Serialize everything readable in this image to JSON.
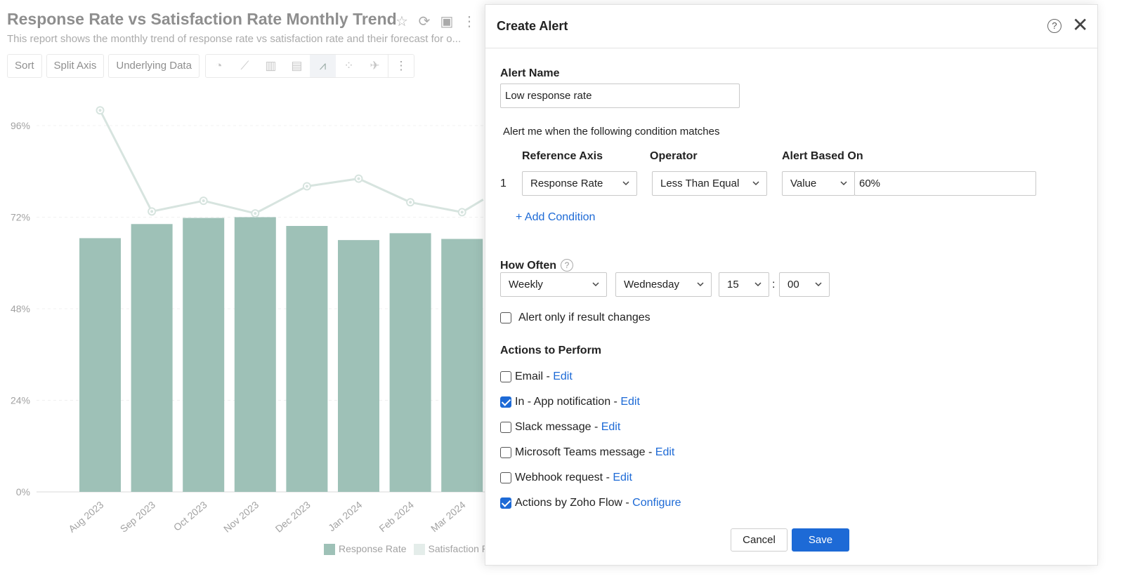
{
  "report": {
    "title": "Response Rate vs Satisfaction Rate Monthly Trend",
    "description": "This report shows the monthly trend of response rate vs satisfaction rate and their forecast for o...",
    "toolbar": {
      "sort": "Sort",
      "split_axis": "Split Axis",
      "underlying_data": "Underlying Data"
    },
    "icons": [
      "star-icon",
      "refresh-icon",
      "save-icon",
      "more-icon"
    ],
    "chart_types": [
      "pie-chart-icon",
      "line-chart-icon",
      "bar-chart-icon",
      "stacked-bar-icon",
      "combo-chart-icon",
      "scatter-icon",
      "map-icon"
    ]
  },
  "chart_data": {
    "type": "bar",
    "categories": [
      "Aug 2023",
      "Sep 2023",
      "Oct 2023",
      "Nov 2023",
      "Dec 2023",
      "Jan 2024",
      "Feb 2024",
      "Mar 2024"
    ],
    "series": [
      {
        "name": "Response Rate",
        "type": "bar",
        "values": [
          66.5,
          70.2,
          71.8,
          72.0,
          69.7,
          66.0,
          67.8,
          66.3
        ]
      },
      {
        "name": "Satisfaction Rate",
        "type": "line",
        "values": [
          100,
          73.5,
          76.3,
          73.0,
          80.1,
          82.1,
          75.9,
          73.3
        ]
      }
    ],
    "y_ticks": [
      "96%",
      "72%",
      "48%",
      "24%",
      "0%"
    ],
    "ylim": [
      0,
      96
    ],
    "grid": true,
    "legend_position": "bottom",
    "colors": {
      "bar": "#4f8f7d",
      "line": "#b7cfc6"
    },
    "legend": [
      "Response Rate",
      "Satisfaction Ra"
    ]
  },
  "modal": {
    "title": "Create Alert",
    "alert_name_label": "Alert Name",
    "alert_name_value": "Low response rate",
    "condition_text": "Alert me when the following condition matches",
    "headers": {
      "reference_axis": "Reference Axis",
      "operator": "Operator",
      "alert_based_on": "Alert Based On"
    },
    "condition": {
      "index": "1",
      "reference_axis": "Response Rate",
      "operator": "Less Than Equal",
      "based_on": "Value",
      "value": "60%"
    },
    "add_condition": "+ Add Condition",
    "how_often_label": "How Often",
    "schedule": {
      "frequency": "Weekly",
      "day": "Wednesday",
      "hour": "15",
      "separator": ":",
      "minute": "00"
    },
    "alert_only_changes": "Alert only if result changes",
    "actions_label": "Actions to Perform",
    "actions": [
      {
        "label": "Email - ",
        "link": "Edit",
        "checked": false
      },
      {
        "label": "In - App notification - ",
        "link": "Edit",
        "checked": true
      },
      {
        "label": "Slack message - ",
        "link": "Edit",
        "checked": false
      },
      {
        "label": "Microsoft Teams message - ",
        "link": "Edit",
        "checked": false
      },
      {
        "label": "Webhook request - ",
        "link": "Edit",
        "checked": false
      },
      {
        "label": "Actions by Zoho Flow - ",
        "link": "Configure",
        "checked": true
      }
    ],
    "cancel": "Cancel",
    "save": "Save",
    "colors": {
      "accent": "#1d6ad6"
    }
  }
}
